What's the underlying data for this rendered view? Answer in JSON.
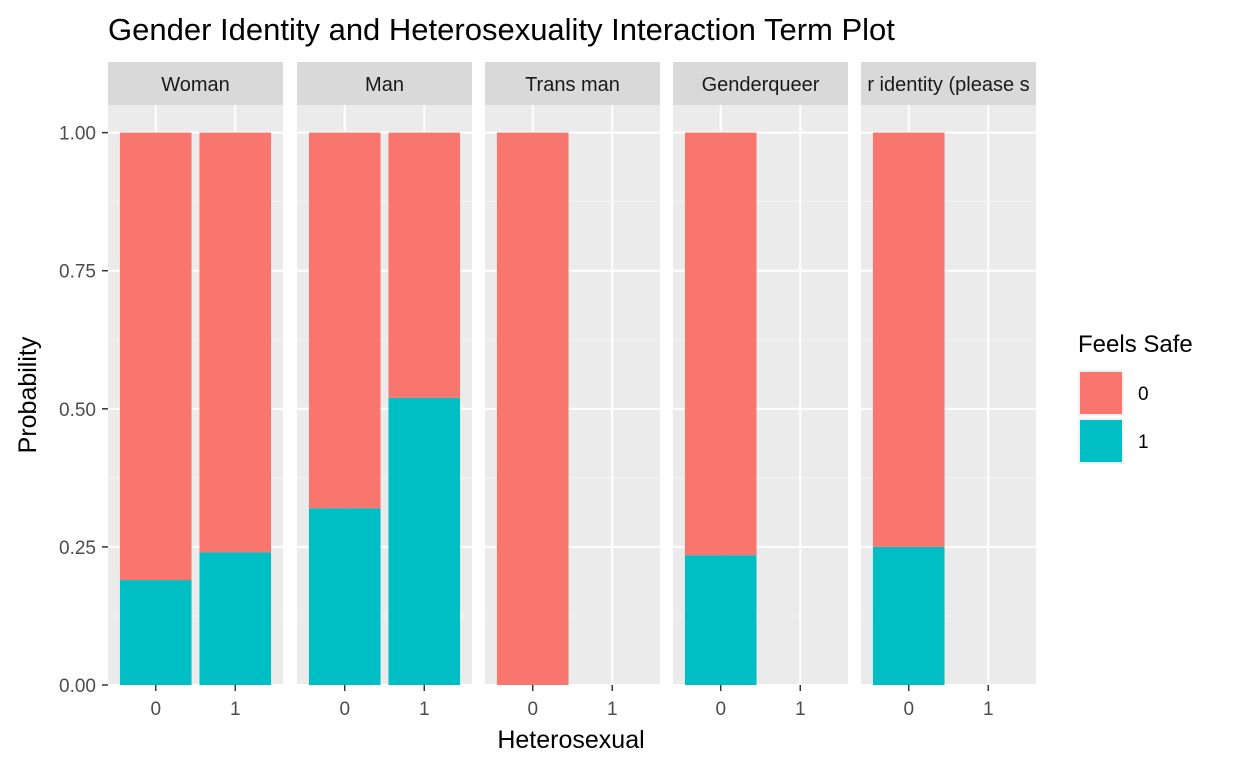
{
  "chart_data": {
    "type": "bar",
    "stacked": true,
    "title": "Gender Identity and Heterosexuality Interaction Term Plot",
    "xlabel": "Heterosexual",
    "ylabel": "Probability",
    "ylim": [
      0,
      1.05
    ],
    "yticks": [
      "0.00",
      "0.25",
      "0.50",
      "0.75",
      "1.00"
    ],
    "ytick_values": [
      0,
      0.25,
      0.5,
      0.75,
      1.0
    ],
    "categories": [
      "0",
      "1"
    ],
    "grid": true,
    "legend": {
      "title": "Feels Safe",
      "placement": "right",
      "entries": [
        {
          "label": "0",
          "color": "#F8766D"
        },
        {
          "label": "1",
          "color": "#00BFC4"
        }
      ]
    },
    "facets": [
      {
        "label": "Woman",
        "bars": [
          {
            "x": "0",
            "p0": 0.81,
            "p1": 0.19
          },
          {
            "x": "1",
            "p0": 0.76,
            "p1": 0.24
          }
        ]
      },
      {
        "label": "Man",
        "bars": [
          {
            "x": "0",
            "p0": 0.68,
            "p1": 0.32
          },
          {
            "x": "1",
            "p0": 0.48,
            "p1": 0.52
          }
        ]
      },
      {
        "label": "Trans man",
        "bars": [
          {
            "x": "0",
            "p0": 1.0,
            "p1": 0.0
          }
        ]
      },
      {
        "label": "Genderqueer",
        "bars": [
          {
            "x": "0",
            "p0": 0.765,
            "p1": 0.235
          }
        ]
      },
      {
        "label": "r identity (please s",
        "bars": [
          {
            "x": "0",
            "p0": 0.75,
            "p1": 0.25
          }
        ]
      }
    ]
  }
}
